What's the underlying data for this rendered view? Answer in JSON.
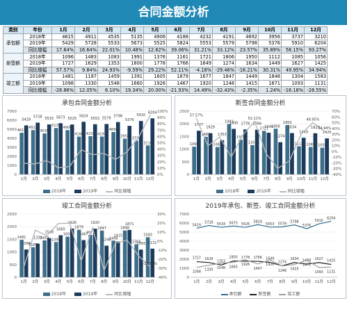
{
  "title": "合同金额分析",
  "table": {
    "headers": [
      "类别",
      "年份",
      "1月",
      "2月",
      "3月",
      "4月",
      "5月",
      "6月",
      "7月",
      "8月",
      "9月",
      "10月",
      "11月",
      "12月"
    ],
    "groups": [
      {
        "category": "承包额",
        "rows": [
          {
            "label": "2018年",
            "values": [
              "4615",
              "4911",
              "4535",
              "5135",
              "4906",
              "4188",
              "4232",
              "4191",
              "4692",
              "3956",
              "3737",
              "3210"
            ]
          },
          {
            "label": "2019年",
            "values": [
              "5429",
              "5728",
              "5533",
              "5673",
              "5525",
              "5824",
              "5553",
              "5579",
              "5798",
              "5376",
              "5910",
              "6204"
            ]
          },
          {
            "label": "同比增幅",
            "values": [
              "17.64%",
              "16.64%",
              "22.01%",
              "10.48%",
              "12.62%",
              "39.06%",
              "31.21%",
              "33.12%",
              "23.57%",
              "35.89%",
              "58.15%",
              "93.27%"
            ]
          }
        ]
      },
      {
        "category": "新签额",
        "rows": [
          {
            "label": "2018年",
            "values": [
              "1096",
              "1483",
              "1083",
              "1991",
              "1376",
              "1161",
              "1721",
              "1806",
              "1950",
              "1112",
              "1085",
              "1056"
            ]
          },
          {
            "label": "2019年",
            "values": [
              "1727",
              "1629",
              "1353",
              "1800",
              "1778",
              "1766",
              "1649",
              "1274",
              "1634",
              "1449",
              "1627",
              "1425"
            ]
          },
          {
            "label": "同比增幅",
            "values": [
              "57.57%",
              "9.84%",
              "24.93%",
              "-9.59%",
              "29.22%",
              "52.11%",
              "-4.18%",
              "-29.46%",
              "-16.21%",
              "30.31%",
              "49.95%",
              "34.94%"
            ]
          }
        ]
      },
      {
        "category": "竣工额",
        "rows": [
          {
            "label": "2018年",
            "values": [
              "1481",
              "1187",
              "1459",
              "1391",
              "1605",
              "1879",
              "1677",
              "1847",
              "1449",
              "1848",
              "1304",
              "1583"
            ]
          },
          {
            "label": "2019年",
            "values": [
              "1098",
              "1330",
              "1548",
              "1660",
              "1926",
              "1467",
              "1920",
              "1248",
              "1415",
              "1871",
              "1093",
              "1131"
            ]
          },
          {
            "label": "同比增幅",
            "values": [
              "-28.86%",
              "12.05%",
              "6.10%",
              "19.34%",
              "20.00%",
              "-21.93%",
              "14.49%",
              "-32.43%",
              "-2.35%",
              "1.24%",
              "-16.18%",
              "-28.55%"
            ]
          }
        ]
      }
    ]
  },
  "legend_labels": {
    "y2018": "2018年",
    "y2019": "2019年",
    "growth": "同比增幅"
  },
  "colors": {
    "banner": "#1f88b4",
    "bar2018": "#3d6f8a",
    "bar2019": "#1b3a5c",
    "growth": "#b4b8bc",
    "line_contract": "#2e6a8e",
    "line_new": "#1b1b1b",
    "line_done": "#9a9ea2"
  },
  "chart_data": [
    {
      "type": "bar",
      "title": "承包合同金额分析",
      "categories": [
        "1月",
        "2月",
        "3月",
        "4月",
        "5月",
        "6月",
        "7月",
        "8月",
        "9月",
        "10月",
        "11月",
        "12月"
      ],
      "series": [
        {
          "name": "2018年",
          "values": [
            4615,
            4911,
            4535,
            5135,
            4906,
            4188,
            4232,
            4191,
            4692,
            3956,
            3737,
            3210
          ]
        },
        {
          "name": "2019年",
          "values": [
            5429,
            5728,
            5533,
            5673,
            5525,
            5824,
            5553,
            5579,
            5798,
            5376,
            5910,
            6204
          ]
        },
        {
          "name": "同比增幅",
          "axis": "right",
          "values": [
            17.64,
            16.64,
            22.01,
            10.48,
            12.62,
            39.06,
            31.21,
            33.12,
            23.57,
            35.89,
            58.15,
            93.27
          ]
        }
      ],
      "ylim": [
        0,
        7000
      ],
      "y2lim": [
        0,
        100
      ],
      "grid": true,
      "legend": "bottom"
    },
    {
      "type": "bar",
      "title": "新签合同金额分析",
      "categories": [
        "1月",
        "2月",
        "3月",
        "4月",
        "5月",
        "6月",
        "7月",
        "8月",
        "9月",
        "10月",
        "11月",
        "12月"
      ],
      "series": [
        {
          "name": "2018年",
          "values": [
            1096,
            1483,
            1083,
            1991,
            1376,
            1161,
            1721,
            1806,
            1950,
            1112,
            1085,
            1056
          ]
        },
        {
          "name": "2019年",
          "values": [
            1727,
            1629,
            1353,
            1800,
            1778,
            1766,
            1649,
            1274,
            1634,
            1449,
            1627,
            1425
          ]
        },
        {
          "name": "同比增幅",
          "axis": "right",
          "values": [
            57.57,
            9.84,
            24.93,
            -9.59,
            29.22,
            52.11,
            -4.18,
            -29.46,
            -16.21,
            30.31,
            49.95,
            34.94
          ]
        }
      ],
      "ylim": [
        0,
        2500
      ],
      "y2lim": [
        -40,
        70
      ],
      "grid": true,
      "legend": "bottom"
    },
    {
      "type": "bar",
      "title": "竣工合同金额分析",
      "categories": [
        "1月",
        "2月",
        "3月",
        "4月",
        "5月",
        "6月",
        "7月",
        "8月",
        "9月",
        "10月",
        "11月",
        "12月"
      ],
      "series": [
        {
          "name": "2018年",
          "values": [
            1481,
            1187,
            1459,
            1391,
            1605,
            1879,
            1677,
            1847,
            1449,
            1848,
            1304,
            1583
          ]
        },
        {
          "name": "2019年",
          "values": [
            1098,
            1330,
            1548,
            1660,
            1926,
            1467,
            1920,
            1248,
            1415,
            1871,
            1093,
            1131
          ]
        },
        {
          "name": "同比增幅",
          "axis": "right",
          "values": [
            -28.86,
            12.05,
            6.1,
            19.34,
            20.0,
            -21.93,
            14.49,
            -32.43,
            -2.35,
            1.24,
            -16.18,
            -28.55
          ]
        }
      ],
      "ylim": [
        0,
        2500
      ],
      "y2lim": [
        -40,
        30
      ],
      "grid": true,
      "legend": "bottom"
    },
    {
      "type": "line",
      "title": "2019年承包、新签、竣工合同金额分析",
      "categories": [
        "1月",
        "2月",
        "3月",
        "4月",
        "5月",
        "6月",
        "7月",
        "8月",
        "9月",
        "10月",
        "11月",
        "12月"
      ],
      "series": [
        {
          "name": "承包额",
          "values": [
            5429,
            5728,
            5533,
            5673,
            5525,
            5824,
            5553,
            5579,
            5798,
            5376,
            5910,
            6204
          ]
        },
        {
          "name": "新签额",
          "values": [
            1727,
            1629,
            1353,
            1800,
            1778,
            1766,
            1649,
            1274,
            1634,
            1449,
            1627,
            1425
          ]
        },
        {
          "name": "竣工额",
          "values": [
            1098,
            1330,
            1548,
            1660,
            1926,
            1467,
            1920,
            1248,
            1415,
            1871,
            1093,
            1131
          ]
        }
      ],
      "ylim": [
        0,
        7000
      ],
      "grid": true,
      "legend": "bottom"
    }
  ]
}
